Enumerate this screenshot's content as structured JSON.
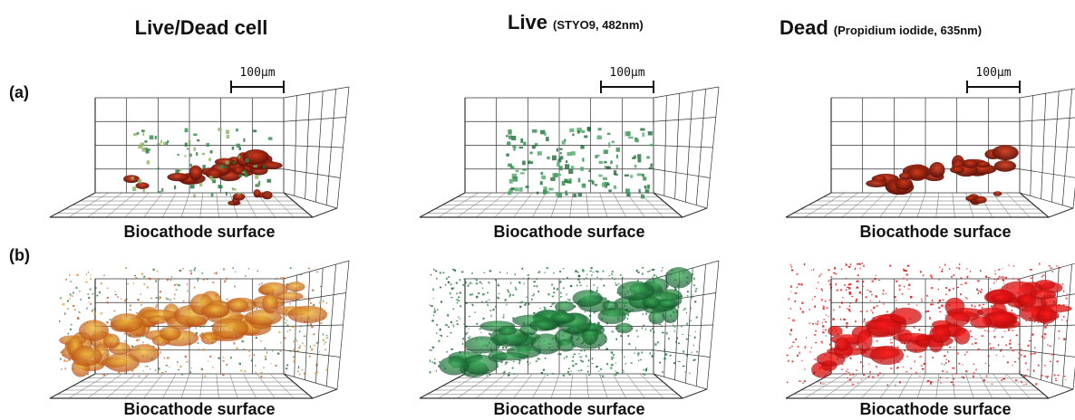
{
  "columns": [
    {
      "title": "Live/Dead cell"
    },
    {
      "title": "Live",
      "subtitle": "(STYO9, 482nm)"
    },
    {
      "title": "Dead",
      "subtitle": "(Propidium iodide, 635nm)"
    }
  ],
  "rows": [
    {
      "label": "(a)"
    },
    {
      "label": "(b)"
    }
  ],
  "scale_bar": "100μm",
  "surface_label": "Biocathode surface"
}
